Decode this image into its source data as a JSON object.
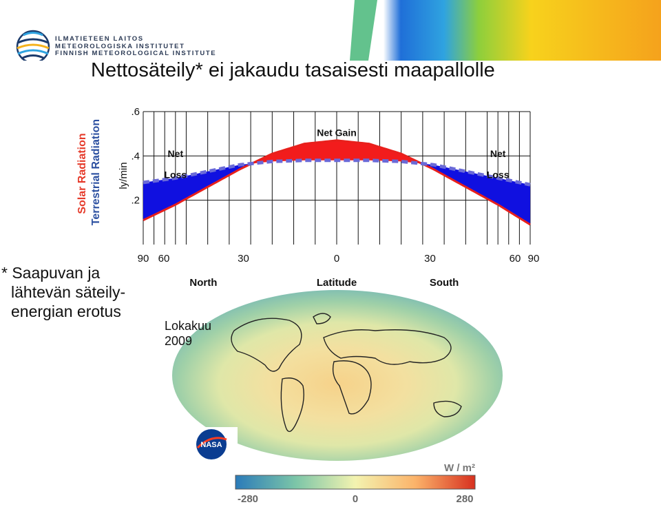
{
  "header": {
    "logo_lines": [
      "ILMATIETEEN LAITOS",
      "METEOROLOGISKA INSTITUTET",
      "FINNISH METEOROLOGICAL INSTITUTE"
    ],
    "banner_colors": [
      "#1f6fd8",
      "#2fa3e0",
      "#8dcf3c",
      "#f7d21c",
      "#f5a21c"
    ]
  },
  "slide": {
    "title": "Nettosäteily* ei jakaudu tasaisesti maapallolle",
    "note_lines": [
      "* Saapuvan ja",
      "lähtevän säteily-",
      "energian erotus"
    ],
    "month_lines": [
      "Lokakuu",
      "2009"
    ]
  },
  "chart_data": {
    "type": "area",
    "ylabel": "ly/min",
    "yticks": [
      ".2",
      ".4",
      ".6"
    ],
    "ylim": [
      0.0,
      0.6
    ],
    "xticks": [
      "90",
      "60",
      "30",
      "0",
      "30",
      "60",
      "90"
    ],
    "x_direction_labels": {
      "left": "North",
      "center": "Latitude",
      "right": "South"
    },
    "x": [
      -90,
      -75,
      -60,
      -45,
      -30,
      -15,
      0,
      15,
      30,
      45,
      60,
      75,
      90
    ],
    "side_labels": [
      "Solar Radiation",
      "Terrestrial Radiation"
    ],
    "series": [
      {
        "name": "Solar Radiation",
        "color": "#e8201c",
        "style": "solid",
        "values": [
          0.11,
          0.18,
          0.26,
          0.34,
          0.41,
          0.455,
          0.47,
          0.455,
          0.41,
          0.34,
          0.26,
          0.18,
          0.09
        ]
      },
      {
        "name": "Terrestrial Radiation",
        "color": "#3e3ec8",
        "style": "dashed",
        "values": [
          0.28,
          0.3,
          0.33,
          0.36,
          0.375,
          0.38,
          0.38,
          0.38,
          0.375,
          0.36,
          0.33,
          0.3,
          0.27
        ]
      }
    ],
    "annotations": [
      {
        "text": "Net Gain",
        "x": 0,
        "y": 0.49
      },
      {
        "text": "Net",
        "x": -75,
        "y": 0.395
      },
      {
        "text": "Loss",
        "x": -75,
        "y": 0.3
      },
      {
        "text": "Net",
        "x": 75,
        "y": 0.395
      },
      {
        "text": "Loss",
        "x": 75,
        "y": 0.3
      }
    ],
    "fill_colors": {
      "gain": "#f21c1c",
      "loss": "#1010e0"
    },
    "grid": true
  },
  "map": {
    "colorbar_unit": "W / m²",
    "colorbar_ticks": [
      "-280",
      "0",
      "280"
    ],
    "colorbar_colors": [
      "#2b7bb9",
      "#7bc5a8",
      "#f3f3b0",
      "#fbb36a",
      "#d7301f"
    ],
    "logo_text": "NASA"
  }
}
